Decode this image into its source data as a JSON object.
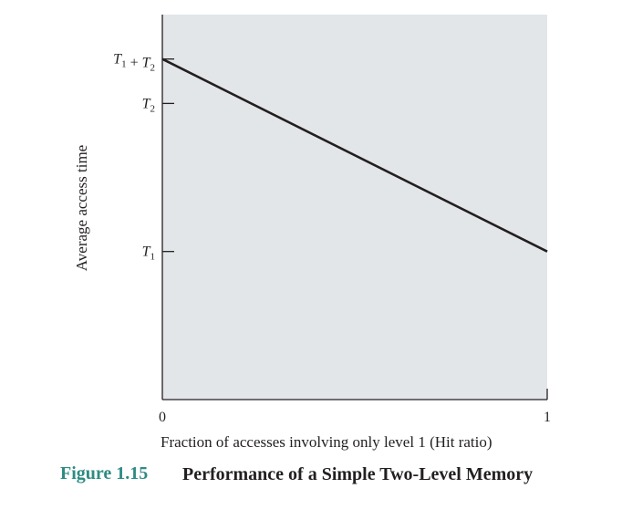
{
  "chart_data": {
    "type": "line",
    "title": "",
    "xlabel": "Fraction of accesses involving only level 1 (Hit ratio)",
    "ylabel": "Average access time",
    "xlim": [
      0,
      1
    ],
    "ylim": [
      0,
      2.6
    ],
    "x_ticks": [
      {
        "value": 0,
        "label": "0"
      },
      {
        "value": 1,
        "label": "1"
      }
    ],
    "y_ticks": [
      {
        "value": 1,
        "label": "T1"
      },
      {
        "value": 2,
        "label": "T2"
      },
      {
        "value": 2.3,
        "label": "T1 + T2"
      }
    ],
    "series": [
      {
        "x": [
          0,
          1
        ],
        "y": [
          2.3,
          1
        ]
      }
    ],
    "grid": false,
    "background_color": "#e3e6e8",
    "line_color": "#231f20"
  },
  "caption": {
    "number": "Figure 1.15",
    "title": "Performance of a Simple Two-Level Memory"
  }
}
